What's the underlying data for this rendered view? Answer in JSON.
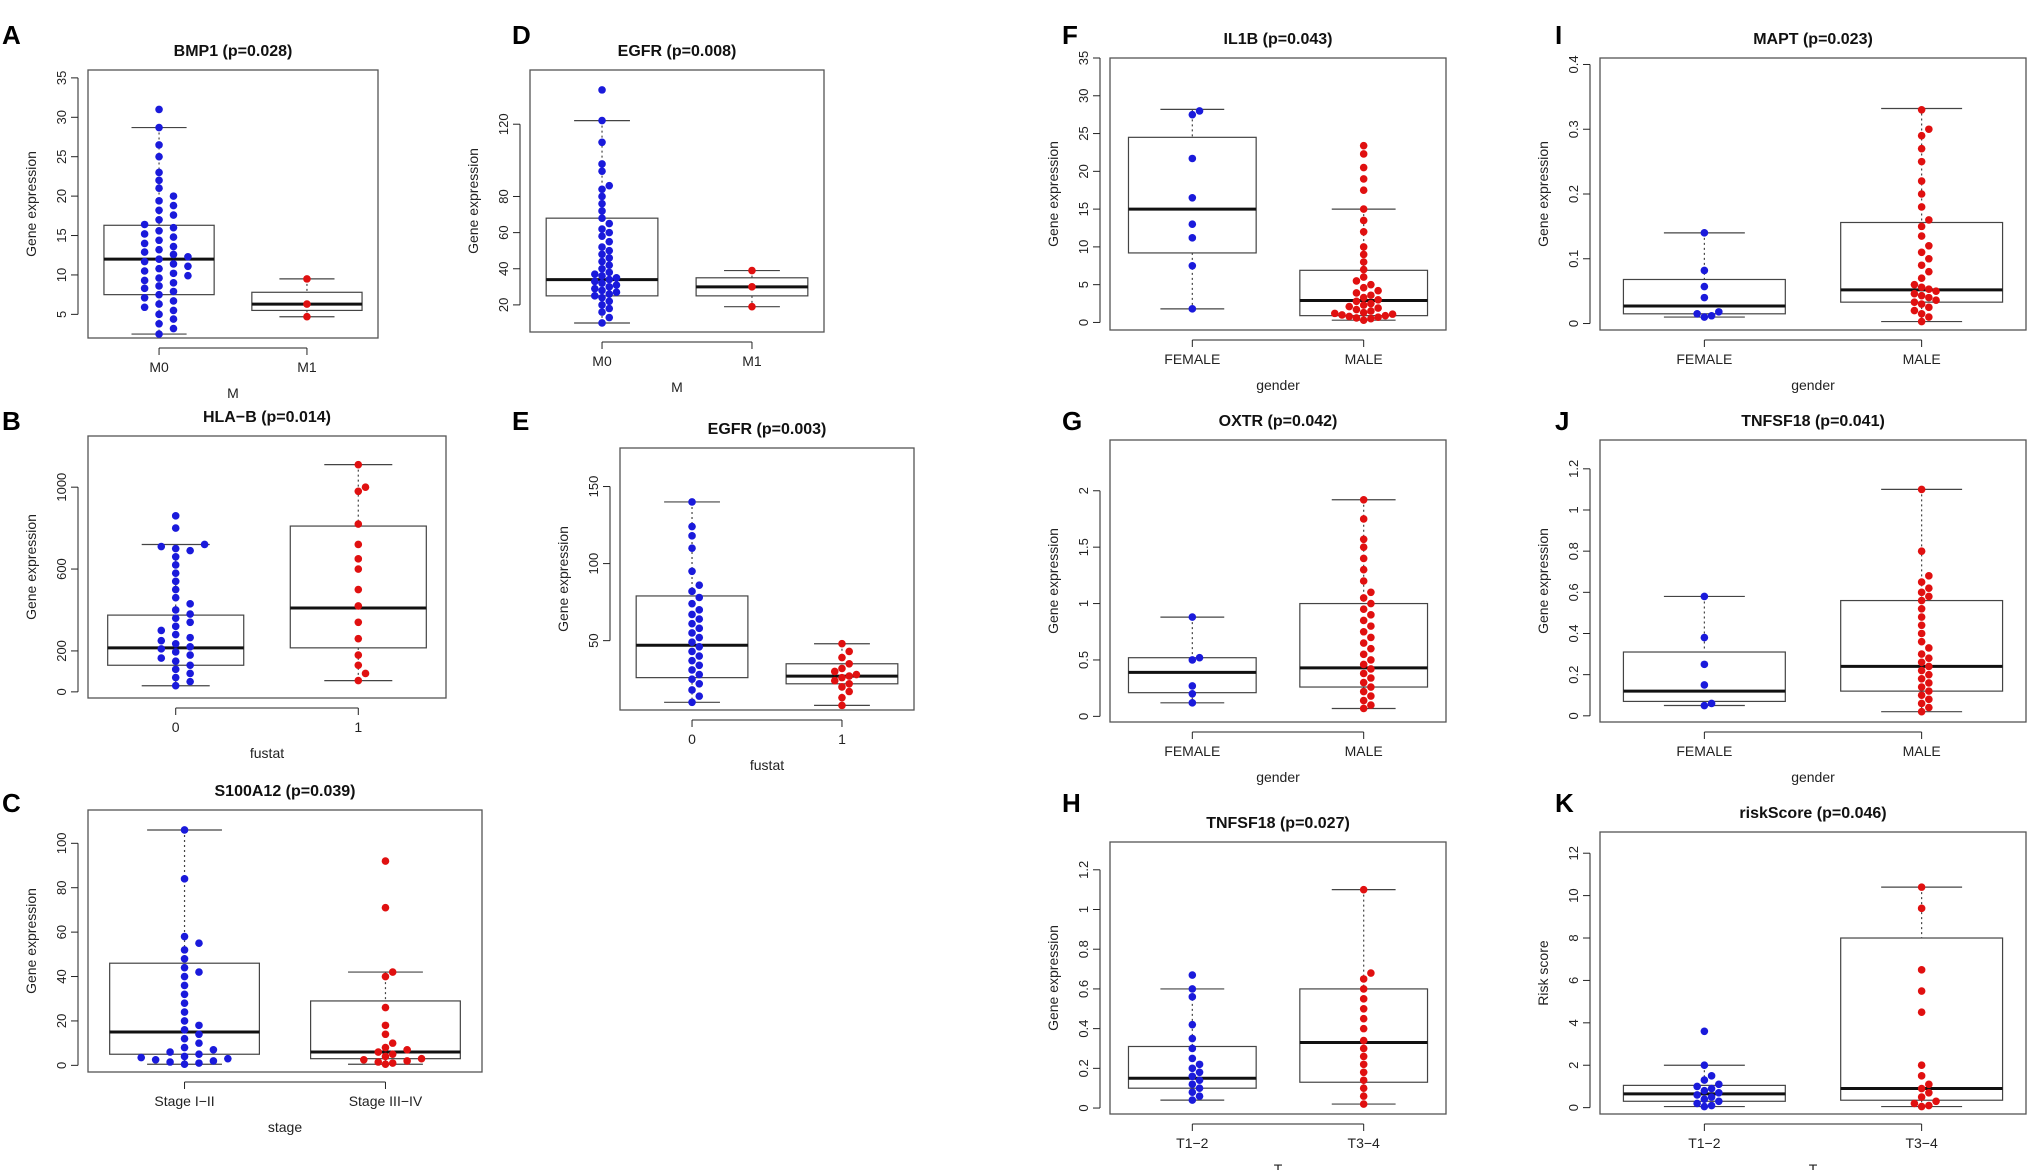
{
  "colors": {
    "group1": "#1a1adb",
    "group2": "#e01010",
    "frame": "#555555",
    "axis": "#222222"
  },
  "chart_data": [
    {
      "letter": "A",
      "type": "boxplot",
      "title": "BMP1 (p=0.028)",
      "xlabel": "M",
      "ylabel": "Gene expression",
      "ylim": [
        2,
        36
      ],
      "yticks": [
        5,
        10,
        15,
        20,
        25,
        30,
        35
      ],
      "categories": [
        "M0",
        "M1"
      ],
      "boxes": [
        {
          "whisker_low": 2.5,
          "q1": 7.5,
          "median": 12,
          "q3": 16.3,
          "whisker_high": 28.7
        },
        {
          "whisker_low": 4.7,
          "q1": 5.5,
          "median": 6.3,
          "q3": 7.8,
          "whisker_high": 9.5
        }
      ],
      "points": [
        [
          2.5,
          3.2,
          3.8,
          4.4,
          5.0,
          5.5,
          5.9,
          6.3,
          6.7,
          7.1,
          7.5,
          7.9,
          8.3,
          8.6,
          9.0,
          9.3,
          9.6,
          9.9,
          10.2,
          10.5,
          10.8,
          11.1,
          11.4,
          11.7,
          12.0,
          12.3,
          12.6,
          12.9,
          13.2,
          13.6,
          14.0,
          14.4,
          14.8,
          15.2,
          15.6,
          16.0,
          16.4,
          17.0,
          17.6,
          18.2,
          18.8,
          19.4,
          20.0,
          21.0,
          22.0,
          23.0,
          25.0,
          26.5,
          28.7,
          31.0
        ],
        [
          4.7,
          6.3,
          9.5
        ]
      ]
    },
    {
      "letter": "D",
      "type": "boxplot",
      "title": "EGFR (p=0.008)",
      "xlabel": "M",
      "ylabel": "Gene expression",
      "ylim": [
        5,
        150
      ],
      "yticks": [
        20,
        40,
        60,
        80,
        120
      ],
      "categories": [
        "M0",
        "M1"
      ],
      "boxes": [
        {
          "whisker_low": 10,
          "q1": 25,
          "median": 34,
          "q3": 68,
          "whisker_high": 122
        },
        {
          "whisker_low": 19,
          "q1": 25,
          "median": 30,
          "q3": 35,
          "whisker_high": 39
        }
      ],
      "points": [
        [
          10,
          13,
          16,
          18,
          20,
          22,
          24,
          25,
          26,
          27,
          28,
          29,
          30,
          31,
          32,
          33,
          34,
          35,
          36,
          37,
          38,
          40,
          42,
          44,
          46,
          48,
          50,
          52,
          55,
          58,
          60,
          62,
          65,
          68,
          72,
          76,
          80,
          84,
          86,
          94,
          98,
          110,
          122,
          139
        ],
        [
          19,
          30,
          39
        ]
      ]
    },
    {
      "letter": "F",
      "type": "boxplot",
      "title": "IL1B (p=0.043)",
      "xlabel": "gender",
      "ylabel": "Gene expression",
      "ylim": [
        -1,
        35
      ],
      "yticks": [
        0,
        5,
        10,
        15,
        20,
        25,
        30,
        35
      ],
      "categories": [
        "FEMALE",
        "MALE"
      ],
      "boxes": [
        {
          "whisker_low": 1.8,
          "q1": 9.2,
          "median": 15,
          "q3": 24.5,
          "whisker_high": 28.2
        },
        {
          "whisker_low": 0.3,
          "q1": 0.9,
          "median": 2.9,
          "q3": 6.9,
          "whisker_high": 15.0
        }
      ],
      "points": [
        [
          1.8,
          7.5,
          11.2,
          13.0,
          16.5,
          21.7,
          27.5,
          28.0
        ],
        [
          0.3,
          0.5,
          0.6,
          0.7,
          0.8,
          0.9,
          1.0,
          1.1,
          1.2,
          1.3,
          1.5,
          1.7,
          1.9,
          2.1,
          2.3,
          2.5,
          2.8,
          3.0,
          3.3,
          3.6,
          3.9,
          4.2,
          4.6,
          5.0,
          5.5,
          6.0,
          7.0,
          8.0,
          9.0,
          10.0,
          12.0,
          13.5,
          15.0,
          17.5,
          19.0,
          20.5,
          22.3,
          23.4
        ]
      ]
    },
    {
      "letter": "I",
      "type": "boxplot",
      "title": "MAPT (p=0.023)",
      "xlabel": "gender",
      "ylabel": "Gene expression",
      "ylim": [
        -0.01,
        0.41
      ],
      "yticks": [
        0.0,
        0.1,
        0.2,
        0.3,
        0.4
      ],
      "categories": [
        "FEMALE",
        "MALE"
      ],
      "boxes": [
        {
          "whisker_low": 0.01,
          "q1": 0.015,
          "median": 0.027,
          "q3": 0.068,
          "whisker_high": 0.14
        },
        {
          "whisker_low": 0.003,
          "q1": 0.033,
          "median": 0.052,
          "q3": 0.156,
          "whisker_high": 0.332
        }
      ],
      "points": [
        [
          0.01,
          0.012,
          0.015,
          0.018,
          0.04,
          0.057,
          0.082,
          0.14
        ],
        [
          0.003,
          0.01,
          0.015,
          0.02,
          0.025,
          0.03,
          0.033,
          0.036,
          0.04,
          0.043,
          0.046,
          0.05,
          0.053,
          0.056,
          0.06,
          0.07,
          0.08,
          0.09,
          0.1,
          0.11,
          0.12,
          0.135,
          0.15,
          0.16,
          0.18,
          0.2,
          0.22,
          0.25,
          0.27,
          0.29,
          0.3,
          0.33
        ]
      ]
    },
    {
      "letter": "B",
      "type": "boxplot",
      "title": "HLA−B (p=0.014)",
      "xlabel": "fustat",
      "ylabel": "Gene expression",
      "ylim": [
        -30,
        1250
      ],
      "yticks": [
        0,
        200,
        600,
        1000
      ],
      "categories": [
        "0",
        "1"
      ],
      "boxes": [
        {
          "whisker_low": 30,
          "q1": 130,
          "median": 215,
          "q3": 375,
          "whisker_high": 720
        },
        {
          "whisker_low": 55,
          "q1": 215,
          "median": 410,
          "q3": 810,
          "whisker_high": 1110
        }
      ],
      "points": [
        [
          30,
          50,
          70,
          90,
          110,
          130,
          150,
          165,
          180,
          195,
          210,
          220,
          235,
          250,
          265,
          280,
          300,
          320,
          340,
          360,
          380,
          400,
          430,
          460,
          500,
          540,
          580,
          620,
          660,
          690,
          700,
          710,
          720,
          800,
          860
        ],
        [
          55,
          90,
          130,
          180,
          260,
          340,
          420,
          500,
          600,
          650,
          720,
          820,
          980,
          1000,
          1110
        ]
      ]
    },
    {
      "letter": "E",
      "type": "boxplot",
      "title": "EGFR (p=0.003)",
      "xlabel": "fustat",
      "ylabel": "Gene expression",
      "ylim": [
        5,
        175
      ],
      "yticks": [
        50,
        100,
        150
      ],
      "categories": [
        "0",
        "1"
      ],
      "boxes": [
        {
          "whisker_low": 10,
          "q1": 26,
          "median": 47,
          "q3": 79,
          "whisker_high": 140
        },
        {
          "whisker_low": 8,
          "q1": 22,
          "median": 27,
          "q3": 35,
          "whisker_high": 48
        }
      ],
      "points": [
        [
          10,
          14,
          18,
          22,
          25,
          28,
          31,
          34,
          37,
          40,
          43,
          46,
          49,
          52,
          55,
          58,
          61,
          64,
          67,
          70,
          74,
          78,
          82,
          86,
          95,
          110,
          118,
          124,
          140
        ],
        [
          8,
          13,
          17,
          20,
          22,
          24,
          26,
          27,
          28,
          30,
          32,
          35,
          39,
          43,
          48
        ]
      ]
    },
    {
      "letter": "G",
      "type": "boxplot",
      "title": "OXTR (p=0.042)",
      "xlabel": "gender",
      "ylabel": "Gene expression",
      "ylim": [
        -0.05,
        2.45
      ],
      "yticks": [
        0.0,
        0.5,
        1.0,
        1.5,
        2.0
      ],
      "categories": [
        "FEMALE",
        "MALE"
      ],
      "boxes": [
        {
          "whisker_low": 0.12,
          "q1": 0.21,
          "median": 0.39,
          "q3": 0.52,
          "whisker_high": 0.88
        },
        {
          "whisker_low": 0.07,
          "q1": 0.26,
          "median": 0.43,
          "q3": 1.0,
          "whisker_high": 1.92
        }
      ],
      "points": [
        [
          0.12,
          0.2,
          0.27,
          0.5,
          0.52,
          0.88
        ],
        [
          0.07,
          0.1,
          0.14,
          0.18,
          0.22,
          0.26,
          0.3,
          0.34,
          0.38,
          0.42,
          0.46,
          0.5,
          0.55,
          0.6,
          0.65,
          0.7,
          0.75,
          0.8,
          0.85,
          0.9,
          0.95,
          1.0,
          1.05,
          1.1,
          1.2,
          1.3,
          1.4,
          1.5,
          1.57,
          1.75,
          1.92
        ]
      ]
    },
    {
      "letter": "J",
      "type": "boxplot",
      "title": "TNFSF18 (p=0.041)",
      "xlabel": "gender",
      "ylabel": "Gene expression",
      "ylim": [
        -0.03,
        1.34
      ],
      "yticks": [
        0.0,
        0.2,
        0.4,
        0.6,
        0.8,
        1.0,
        1.2
      ],
      "categories": [
        "FEMALE",
        "MALE"
      ],
      "boxes": [
        {
          "whisker_low": 0.05,
          "q1": 0.07,
          "median": 0.12,
          "q3": 0.31,
          "whisker_high": 0.58
        },
        {
          "whisker_low": 0.02,
          "q1": 0.12,
          "median": 0.24,
          "q3": 0.56,
          "whisker_high": 1.1
        }
      ],
      "points": [
        [
          0.05,
          0.06,
          0.15,
          0.25,
          0.38,
          0.58
        ],
        [
          0.02,
          0.04,
          0.06,
          0.08,
          0.1,
          0.12,
          0.14,
          0.16,
          0.18,
          0.2,
          0.22,
          0.24,
          0.26,
          0.28,
          0.3,
          0.33,
          0.36,
          0.4,
          0.44,
          0.48,
          0.52,
          0.56,
          0.58,
          0.6,
          0.62,
          0.65,
          0.68,
          0.8,
          1.1
        ]
      ]
    },
    {
      "letter": "C",
      "type": "boxplot",
      "title": "S100A12 (p=0.039)",
      "xlabel": "stage",
      "ylabel": "Gene expression",
      "ylim": [
        -3,
        115
      ],
      "yticks": [
        0,
        20,
        40,
        60,
        80,
        100
      ],
      "categories": [
        "Stage I−II",
        "Stage III−IV"
      ],
      "boxes": [
        {
          "whisker_low": 0.5,
          "q1": 5,
          "median": 15,
          "q3": 46,
          "whisker_high": 106
        },
        {
          "whisker_low": 0.5,
          "q1": 3,
          "median": 6,
          "q3": 29,
          "whisker_high": 42
        }
      ],
      "points": [
        [
          0.5,
          1,
          1.5,
          2,
          2.5,
          3,
          3.5,
          4,
          5,
          6,
          7,
          8,
          10,
          12,
          14,
          16,
          18,
          20,
          24,
          28,
          32,
          36,
          40,
          42,
          44,
          48,
          52,
          55,
          58,
          84,
          106
        ],
        [
          0.5,
          1,
          1.5,
          2,
          2.5,
          3,
          4,
          5,
          6,
          7,
          8,
          10,
          14,
          18,
          26,
          40,
          42,
          71,
          92
        ]
      ]
    },
    {
      "letter": "H",
      "type": "boxplot",
      "title": "TNFSF18 (p=0.027)",
      "xlabel": "T",
      "ylabel": "Gene expression",
      "ylim": [
        -0.03,
        1.34
      ],
      "yticks": [
        0.0,
        0.2,
        0.4,
        0.6,
        0.8,
        1.0,
        1.2
      ],
      "categories": [
        "T1−2",
        "T3−4"
      ],
      "boxes": [
        {
          "whisker_low": 0.04,
          "q1": 0.1,
          "median": 0.15,
          "q3": 0.31,
          "whisker_high": 0.6
        },
        {
          "whisker_low": 0.02,
          "q1": 0.13,
          "median": 0.33,
          "q3": 0.6,
          "whisker_high": 1.1
        }
      ],
      "points": [
        [
          0.04,
          0.06,
          0.08,
          0.1,
          0.12,
          0.14,
          0.16,
          0.18,
          0.2,
          0.22,
          0.25,
          0.3,
          0.35,
          0.42,
          0.56,
          0.6,
          0.67
        ],
        [
          0.02,
          0.06,
          0.1,
          0.14,
          0.18,
          0.22,
          0.26,
          0.3,
          0.34,
          0.4,
          0.45,
          0.5,
          0.55,
          0.6,
          0.65,
          0.68,
          1.1
        ]
      ]
    },
    {
      "letter": "K",
      "type": "boxplot",
      "title": "riskScore (p=0.046)",
      "xlabel": "T",
      "ylabel": "Risk score",
      "ylim": [
        -0.3,
        13
      ],
      "yticks": [
        0,
        2,
        4,
        6,
        8,
        10,
        12
      ],
      "categories": [
        "T1−2",
        "T3−4"
      ],
      "boxes": [
        {
          "whisker_low": 0.05,
          "q1": 0.3,
          "median": 0.65,
          "q3": 1.05,
          "whisker_high": 2.0
        },
        {
          "whisker_low": 0.05,
          "q1": 0.35,
          "median": 0.9,
          "q3": 8.0,
          "whisker_high": 10.4
        }
      ],
      "points": [
        [
          0.05,
          0.1,
          0.2,
          0.3,
          0.4,
          0.5,
          0.6,
          0.7,
          0.8,
          0.9,
          1.0,
          1.1,
          1.3,
          1.5,
          2.0,
          3.6
        ],
        [
          0.05,
          0.1,
          0.2,
          0.3,
          0.5,
          0.7,
          0.9,
          1.1,
          1.5,
          2.0,
          4.5,
          5.5,
          6.5,
          9.4,
          10.4
        ]
      ]
    }
  ]
}
